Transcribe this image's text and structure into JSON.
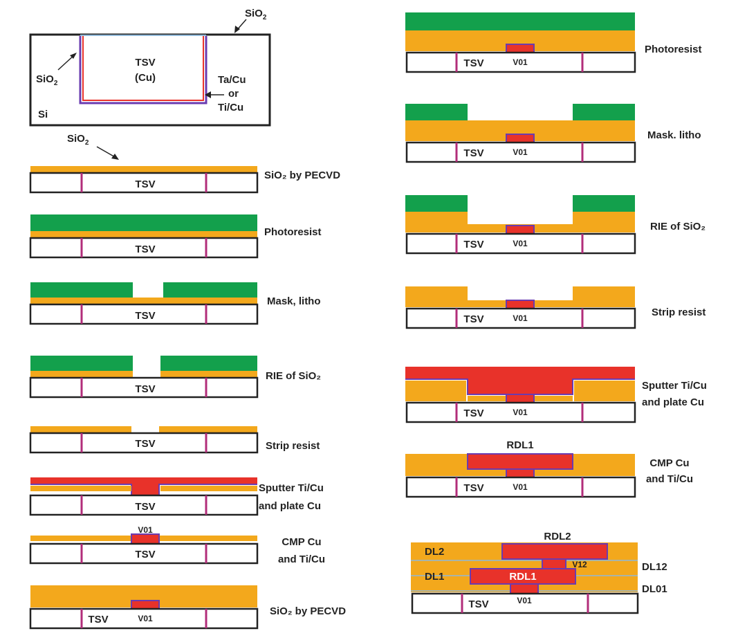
{
  "colors": {
    "oxide": "#f3a81c",
    "resist": "#13a04c",
    "copper": "#e8322a",
    "barrier": "#6a3bb0",
    "tsv_liner": "#b22d7a",
    "outline": "#222222",
    "thin_oxide": "#8fb8d8"
  },
  "top_diagram": {
    "sio2_top": "SiO",
    "sio2_left": "SiO",
    "tsv": "TSV",
    "cu": "(Cu)",
    "barrier_1": "Ta/Cu",
    "or": "or",
    "barrier_2": "Ti/Cu",
    "si": "Si",
    "sio2_below": "SiO",
    "subscript": "2"
  },
  "steps_left": [
    {
      "label": "SiO₂ by PECVD",
      "tsv": "TSV"
    },
    {
      "label": "Photoresist",
      "tsv": "TSV"
    },
    {
      "label": "Mask, litho",
      "tsv": "TSV"
    },
    {
      "label": "RIE of SiO₂",
      "tsv": "TSV"
    },
    {
      "label": "Strip resist",
      "tsv": "TSV"
    },
    {
      "label_1": "Sputter Ti/Cu",
      "label_2": "and plate Cu",
      "tsv": "TSV"
    },
    {
      "label_1": "CMP Cu",
      "label_2": "and Ti/Cu",
      "tsv": "TSV",
      "via": "V01"
    },
    {
      "label": "SiO₂ by PECVD",
      "tsv": "TSV",
      "via": "V01"
    }
  ],
  "steps_right": [
    {
      "label": "Photoresist",
      "tsv": "TSV",
      "via": "V01"
    },
    {
      "label": "Mask. litho",
      "tsv": "TSV",
      "via": "V01"
    },
    {
      "label": "RIE of SiO₂",
      "tsv": "TSV",
      "via": "V01"
    },
    {
      "label": "Strip resist",
      "tsv": "TSV",
      "via": "V01"
    },
    {
      "label_1": "Sputter Ti/Cu",
      "label_2": "and plate Cu",
      "tsv": "TSV",
      "via": "V01"
    },
    {
      "label_1": "CMP Cu",
      "label_2": "and Ti/Cu",
      "tsv": "TSV",
      "via": "V01",
      "rdl": "RDL1"
    },
    {
      "tsv": "TSV",
      "via": "V01",
      "rdl1": "RDL1",
      "rdl2": "RDL2",
      "v12": "V12",
      "dl1": "DL1",
      "dl2": "DL2",
      "dl12": "DL12",
      "dl01": "DL01"
    }
  ]
}
